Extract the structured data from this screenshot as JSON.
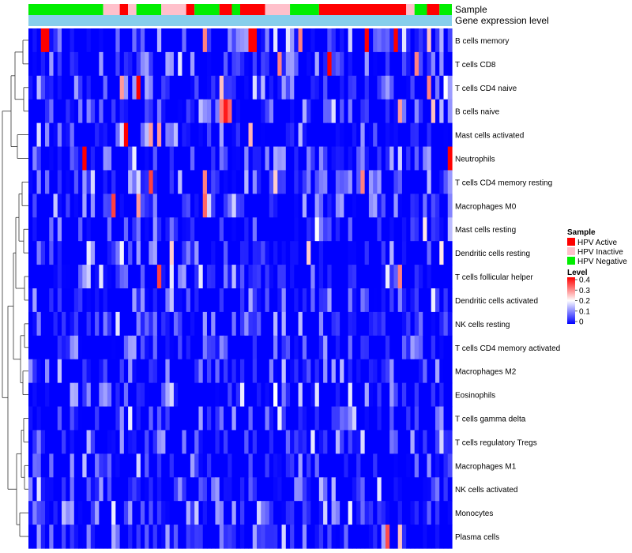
{
  "chart_data": {
    "type": "heatmap",
    "annotation_tracks": [
      "Sample",
      "Gene expression level"
    ],
    "sample_groups": [
      "HPV Negative",
      "HPV Negative",
      "HPV Negative",
      "HPV Negative",
      "HPV Negative",
      "HPV Negative",
      "HPV Negative",
      "HPV Negative",
      "HPV Negative",
      "HPV Negative",
      "HPV Negative",
      "HPV Negative",
      "HPV Negative",
      "HPV Negative",
      "HPV Negative",
      "HPV Negative",
      "HPV Negative",
      "HPV Negative",
      "HPV Inactive",
      "HPV Inactive",
      "HPV Inactive",
      "HPV Inactive",
      "HPV Active",
      "HPV Active",
      "HPV Inactive",
      "HPV Inactive",
      "HPV Negative",
      "HPV Negative",
      "HPV Negative",
      "HPV Negative",
      "HPV Negative",
      "HPV Negative",
      "HPV Inactive",
      "HPV Inactive",
      "HPV Inactive",
      "HPV Inactive",
      "HPV Inactive",
      "HPV Inactive",
      "HPV Active",
      "HPV Active",
      "HPV Negative",
      "HPV Negative",
      "HPV Negative",
      "HPV Negative",
      "HPV Negative",
      "HPV Negative",
      "HPV Active",
      "HPV Active",
      "HPV Active",
      "HPV Negative",
      "HPV Negative",
      "HPV Active",
      "HPV Active",
      "HPV Active",
      "HPV Active",
      "HPV Active",
      "HPV Active",
      "HPV Inactive",
      "HPV Inactive",
      "HPV Inactive",
      "HPV Inactive",
      "HPV Inactive",
      "HPV Inactive",
      "HPV Negative",
      "HPV Negative",
      "HPV Negative",
      "HPV Negative",
      "HPV Negative",
      "HPV Negative",
      "HPV Negative",
      "HPV Active",
      "HPV Active",
      "HPV Active",
      "HPV Active",
      "HPV Active",
      "HPV Active",
      "HPV Active",
      "HPV Active",
      "HPV Active",
      "HPV Active",
      "HPV Active",
      "HPV Active",
      "HPV Active",
      "HPV Active",
      "HPV Active",
      "HPV Active",
      "HPV Active",
      "HPV Active",
      "HPV Active",
      "HPV Active",
      "HPV Active",
      "HPV Inactive",
      "HPV Inactive",
      "HPV Negative",
      "HPV Negative",
      "HPV Negative",
      "HPV Active",
      "HPV Active",
      "HPV Active",
      "HPV Negative",
      "HPV Negative",
      "HPV Negative"
    ],
    "rows": [
      "B cells memory",
      "T cells CD8",
      "T cells CD4 naive",
      "B cells naive",
      "Mast cells activated",
      "Neutrophils",
      "T cells CD4 memory resting",
      "Macrophages M0",
      "Mast cells resting",
      "Dendritic cells resting",
      "T cells follicular helper",
      "Dendritic cells activated",
      "NK cells resting",
      "T cells CD4 memory activated",
      "Macrophages M2",
      "Eosinophils",
      "T cells gamma delta",
      "T cells regulatory  Tregs",
      "Macrophages M1",
      "NK cells activated",
      "Monocytes",
      "Plasma cells"
    ],
    "hot_cells": [
      {
        "row": 0,
        "col": 3,
        "v": 0.4
      },
      {
        "row": 0,
        "col": 4,
        "v": 0.4
      },
      {
        "row": 0,
        "col": 42,
        "v": 0.3
      },
      {
        "row": 0,
        "col": 53,
        "v": 0.4
      },
      {
        "row": 0,
        "col": 54,
        "v": 0.4
      },
      {
        "row": 0,
        "col": 59,
        "v": 0.18
      },
      {
        "row": 0,
        "col": 62,
        "v": 0.18
      },
      {
        "row": 0,
        "col": 65,
        "v": 0.3
      },
      {
        "row": 0,
        "col": 81,
        "v": 0.4
      },
      {
        "row": 0,
        "col": 88,
        "v": 0.4
      },
      {
        "row": 0,
        "col": 90,
        "v": 0.18
      },
      {
        "row": 0,
        "col": 96,
        "v": 0.25
      },
      {
        "row": 1,
        "col": 72,
        "v": 0.4
      },
      {
        "row": 1,
        "col": 60,
        "v": 0.3
      },
      {
        "row": 1,
        "col": 36,
        "v": 0.18
      },
      {
        "row": 1,
        "col": 93,
        "v": 0.3
      },
      {
        "row": 2,
        "col": 26,
        "v": 0.4
      },
      {
        "row": 2,
        "col": 22,
        "v": 0.28
      },
      {
        "row": 2,
        "col": 46,
        "v": 0.25
      },
      {
        "row": 2,
        "col": 96,
        "v": 0.3
      },
      {
        "row": 2,
        "col": 100,
        "v": 0.2
      },
      {
        "row": 3,
        "col": 46,
        "v": 0.3
      },
      {
        "row": 3,
        "col": 47,
        "v": 0.38
      },
      {
        "row": 3,
        "col": 48,
        "v": 0.32
      },
      {
        "row": 3,
        "col": 89,
        "v": 0.28
      },
      {
        "row": 3,
        "col": 97,
        "v": 0.25
      },
      {
        "row": 4,
        "col": 23,
        "v": 0.4
      },
      {
        "row": 4,
        "col": 29,
        "v": 0.28
      },
      {
        "row": 4,
        "col": 31,
        "v": 0.28
      },
      {
        "row": 4,
        "col": 53,
        "v": 0.26
      },
      {
        "row": 5,
        "col": 13,
        "v": 0.4
      },
      {
        "row": 5,
        "col": 101,
        "v": 0.4
      },
      {
        "row": 6,
        "col": 29,
        "v": 0.35
      },
      {
        "row": 6,
        "col": 42,
        "v": 0.3
      },
      {
        "row": 6,
        "col": 59,
        "v": 0.24
      },
      {
        "row": 6,
        "col": 80,
        "v": 0.3
      },
      {
        "row": 7,
        "col": 20,
        "v": 0.35
      },
      {
        "row": 7,
        "col": 26,
        "v": 0.28
      },
      {
        "row": 7,
        "col": 42,
        "v": 0.32
      },
      {
        "row": 8,
        "col": 69,
        "v": 0.2
      },
      {
        "row": 8,
        "col": 95,
        "v": 0.22
      },
      {
        "row": 9,
        "col": 34,
        "v": 0.24
      },
      {
        "row": 9,
        "col": 67,
        "v": 0.24
      },
      {
        "row": 9,
        "col": 99,
        "v": 0.22
      },
      {
        "row": 10,
        "col": 31,
        "v": 0.35
      },
      {
        "row": 10,
        "col": 89,
        "v": 0.3
      },
      {
        "row": 15,
        "col": 59,
        "v": 0.2
      },
      {
        "row": 21,
        "col": 86,
        "v": 0.34
      },
      {
        "row": 21,
        "col": 89,
        "v": 0.25
      }
    ]
  },
  "labels": {
    "track_sample": "Sample",
    "track_expression": "Gene expression level",
    "legend_sample_title": "Sample",
    "legend_sample_items": [
      {
        "label": "HPV Active",
        "color": "#ff0000"
      },
      {
        "label": "HPV Inactive",
        "color": "#ffc0cb"
      },
      {
        "label": "HPV Negative",
        "color": "#00ee00"
      }
    ],
    "legend_level_title": "Level",
    "legend_level_ticks": [
      "0.4",
      "0.3",
      "0.2",
      "0.1",
      "0"
    ]
  },
  "colors": {
    "low": "#0000ff",
    "mid": "#ffffff",
    "high": "#ff0000",
    "expression_track": "#87ceeb",
    "group_map": {
      "HPV Active": "#ff0000",
      "HPV Inactive": "#ffc0cb",
      "HPV Negative": "#00ee00"
    }
  }
}
